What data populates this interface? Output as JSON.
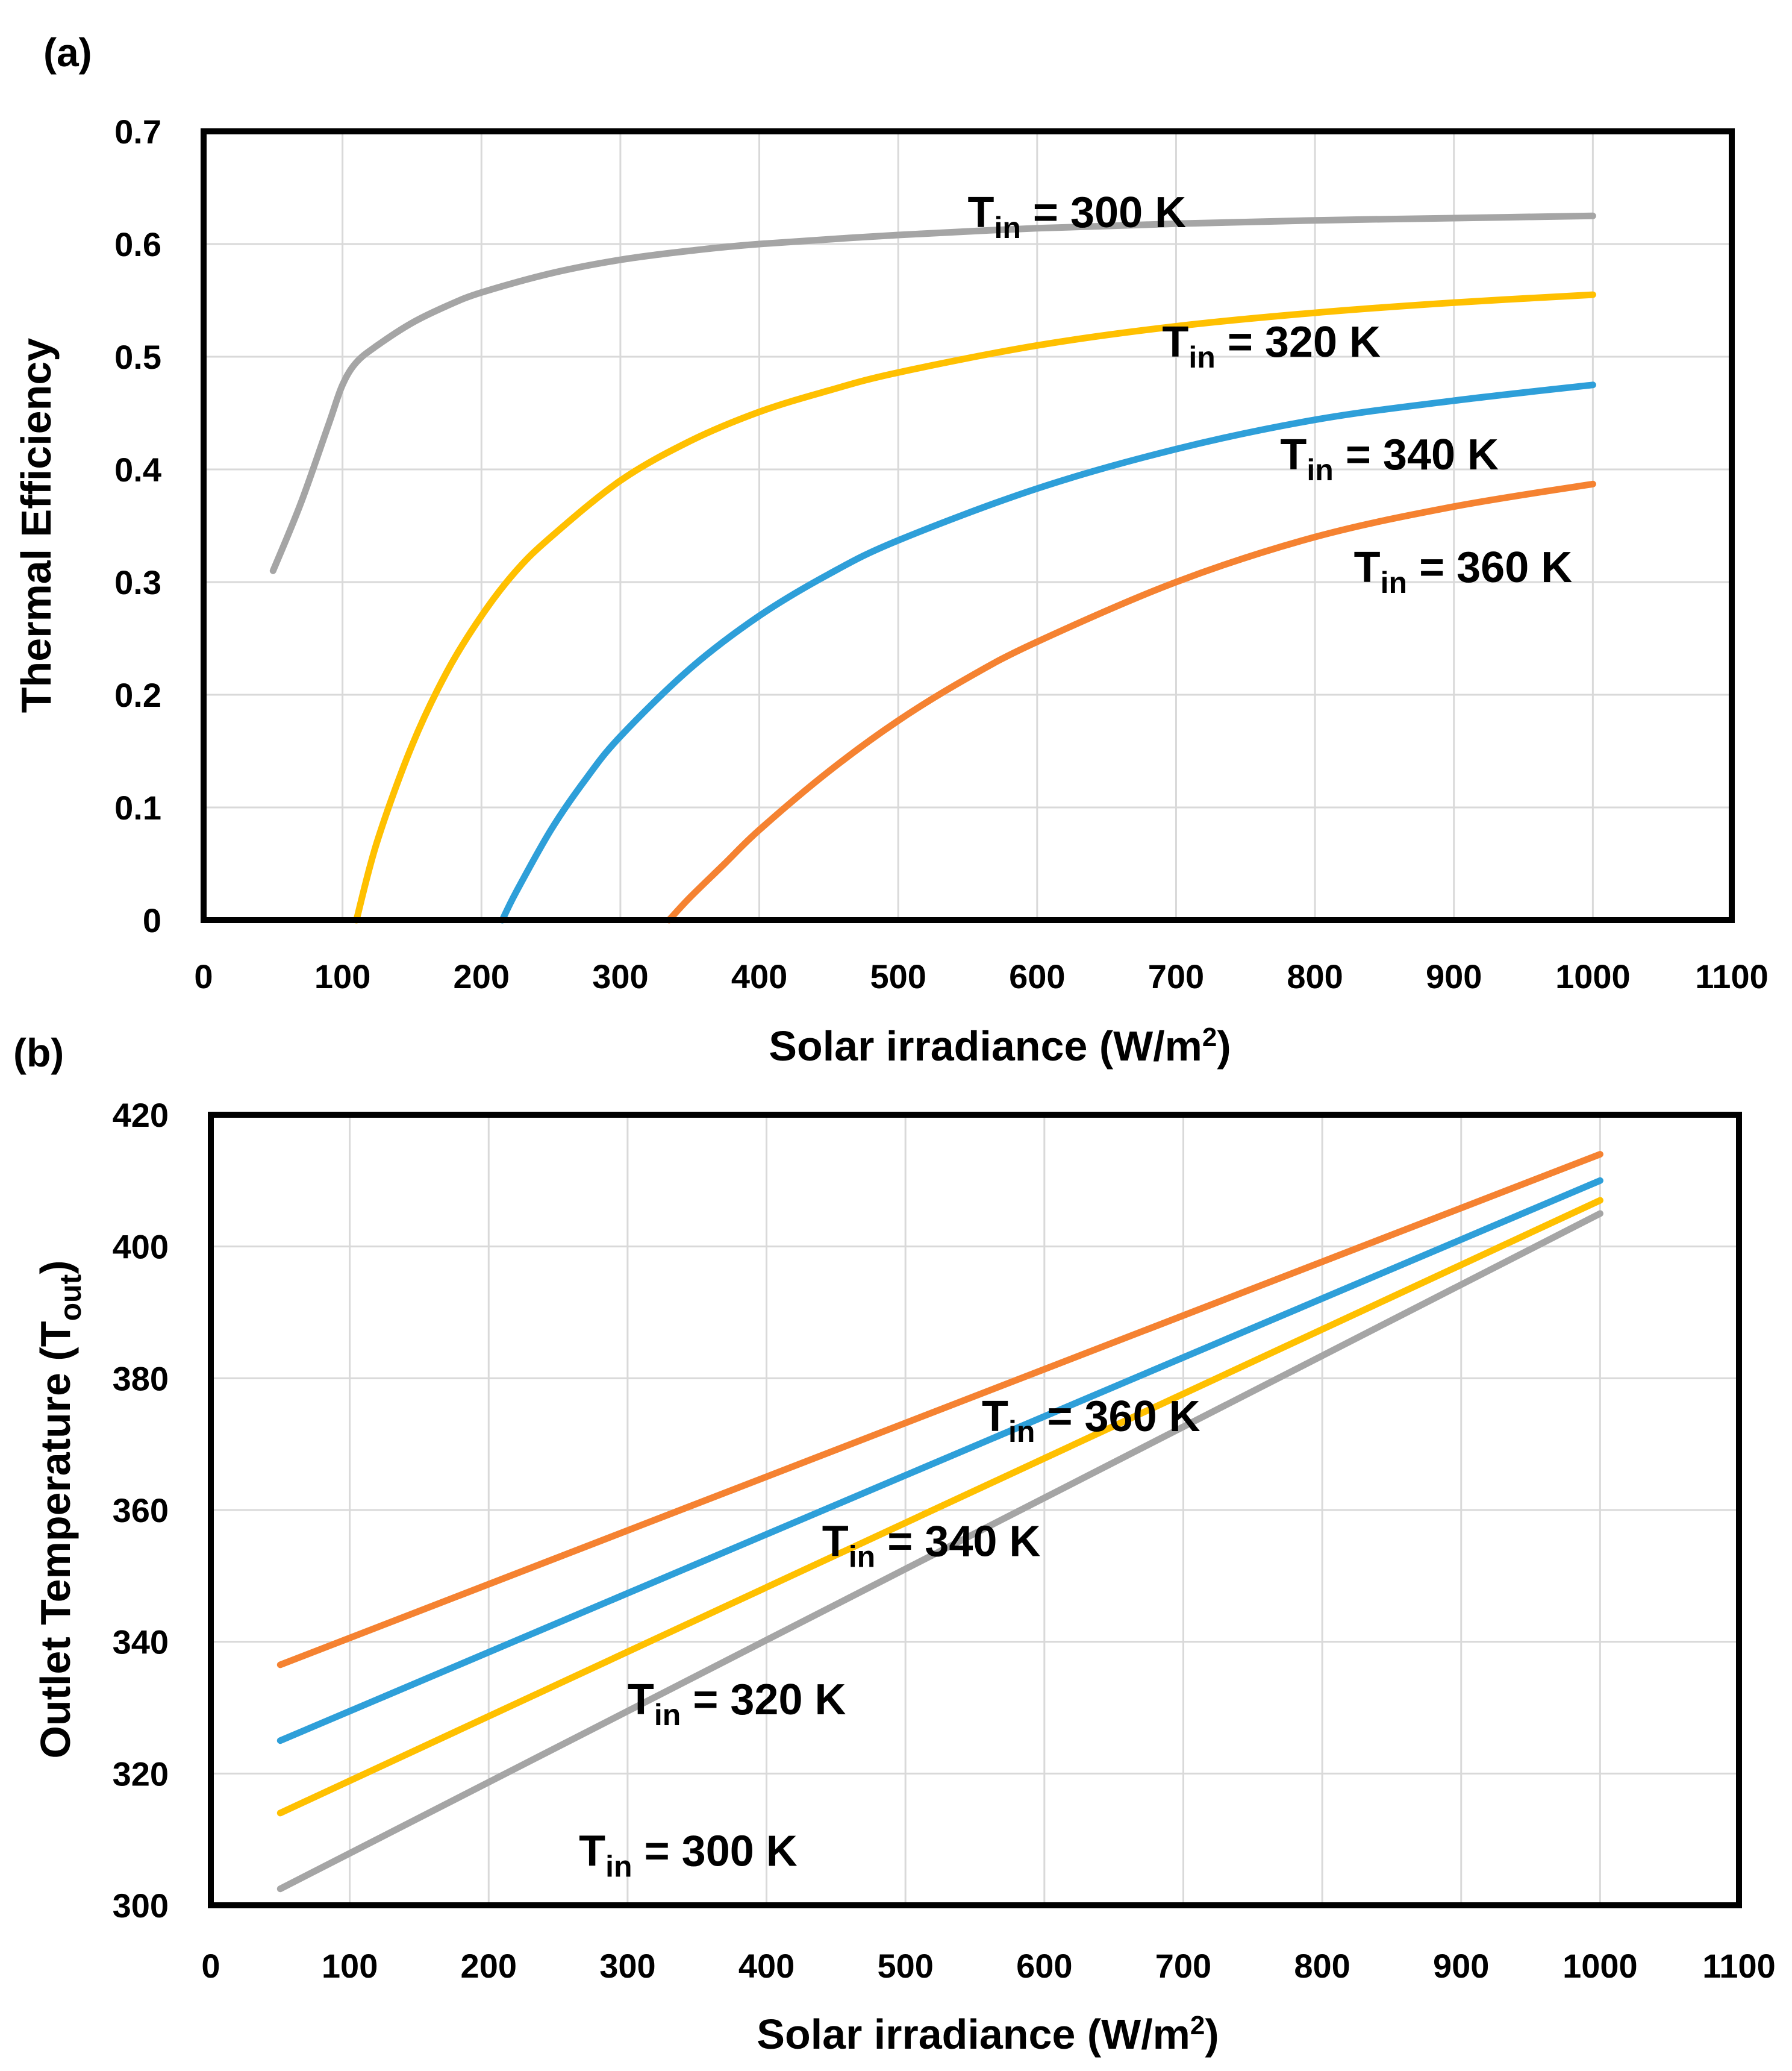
{
  "chart_data": [
    {
      "panel_label": "(a)",
      "type": "line",
      "xlabel": "Solar irradiance (W/m",
      "xlabel_sup": "2",
      "xlabel_end": ")",
      "ylabel": "Thermal Efficiency",
      "xlim": [
        0,
        1100
      ],
      "ylim": [
        0,
        0.7
      ],
      "xticks": [
        "0",
        "100",
        "200",
        "300",
        "400",
        "500",
        "600",
        "700",
        "800",
        "900",
        "1000",
        "1100"
      ],
      "yticks": [
        "0",
        "0.1",
        "0.2",
        "0.3",
        "0.4",
        "0.5",
        "0.6",
        "0.7"
      ],
      "grid": true,
      "series": [
        {
          "name": "Tin = 300 K",
          "label": {
            "base": "T",
            "sub": "in",
            "rest": " = 300 K"
          },
          "color": "#a5a5a5",
          "x": [
            50,
            70,
            90,
            100,
            110,
            125,
            150,
            175,
            200,
            250,
            300,
            350,
            400,
            500,
            600,
            700,
            800,
            900,
            1000
          ],
          "y": [
            0.31,
            0.37,
            0.44,
            0.475,
            0.495,
            0.51,
            0.53,
            0.545,
            0.557,
            0.574,
            0.586,
            0.594,
            0.6,
            0.608,
            0.614,
            0.618,
            0.621,
            0.623,
            0.625
          ],
          "label_at": [
            550,
            0.615
          ]
        },
        {
          "name": "Tin = 320 K",
          "label": {
            "base": "T",
            "sub": "in",
            "rest": " = 320 K"
          },
          "color": "#ffc000",
          "x": [
            110,
            125,
            150,
            175,
            200,
            225,
            250,
            300,
            350,
            400,
            450,
            500,
            600,
            700,
            800,
            900,
            1000
          ],
          "y": [
            0,
            0.07,
            0.155,
            0.22,
            0.27,
            0.31,
            0.34,
            0.39,
            0.425,
            0.451,
            0.47,
            0.486,
            0.51,
            0.527,
            0.539,
            0.548,
            0.555
          ],
          "label_at": [
            690,
            0.5
          ]
        },
        {
          "name": "Tin = 340 K",
          "label": {
            "base": "T",
            "sub": "in",
            "rest": " = 340 K"
          },
          "color": "#2e9fd9",
          "x": [
            215,
            225,
            250,
            275,
            300,
            350,
            400,
            450,
            500,
            600,
            700,
            800,
            900,
            1000
          ],
          "y": [
            0,
            0.025,
            0.08,
            0.125,
            0.163,
            0.223,
            0.27,
            0.307,
            0.337,
            0.383,
            0.418,
            0.444,
            0.461,
            0.475
          ],
          "label_at": [
            775,
            0.4
          ]
        },
        {
          "name": "Tin = 360 K",
          "label": {
            "base": "T",
            "sub": "in",
            "rest": " = 360 K"
          },
          "color": "#f58231",
          "x": [
            335,
            350,
            375,
            400,
            450,
            500,
            550,
            600,
            700,
            800,
            900,
            1000
          ],
          "y": [
            0,
            0.02,
            0.05,
            0.08,
            0.132,
            0.177,
            0.215,
            0.247,
            0.3,
            0.34,
            0.367,
            0.387
          ],
          "label_at": [
            828,
            0.3
          ]
        }
      ]
    },
    {
      "panel_label": "(b)",
      "type": "line",
      "xlabel": "Solar irradiance (W/m",
      "xlabel_sup": "2",
      "xlabel_end": ")",
      "ylabel": "Outlet Temperature  (T",
      "ylabel_sub": "out",
      "ylabel_end": ")",
      "xlim": [
        0,
        1100
      ],
      "ylim": [
        300,
        420
      ],
      "xticks": [
        "0",
        "100",
        "200",
        "300",
        "400",
        "500",
        "600",
        "700",
        "800",
        "900",
        "1000",
        "1100"
      ],
      "yticks": [
        "300",
        "320",
        "340",
        "360",
        "380",
        "400",
        "420"
      ],
      "grid": true,
      "series": [
        {
          "name": "Tin = 300 K",
          "label": {
            "base": "T",
            "sub": "in",
            "rest": " = 300 K"
          },
          "color": "#a5a5a5",
          "x": [
            50,
            1000
          ],
          "y": [
            302.5,
            405
          ],
          "label_at": [
            265,
            306
          ]
        },
        {
          "name": "Tin = 320 K",
          "label": {
            "base": "T",
            "sub": "in",
            "rest": " = 320 K"
          },
          "color": "#ffc000",
          "x": [
            50,
            1000
          ],
          "y": [
            314,
            407
          ],
          "label_at": [
            300,
            329
          ]
        },
        {
          "name": "Tin = 340 K",
          "label": {
            "base": "T",
            "sub": "in",
            "rest": " = 340 K"
          },
          "color": "#2e9fd9",
          "x": [
            50,
            1000
          ],
          "y": [
            325,
            410
          ],
          "label_at": [
            440,
            353
          ]
        },
        {
          "name": "Tin = 360 K",
          "label": {
            "base": "T",
            "sub": "in",
            "rest": " = 360 K"
          },
          "color": "#f58231",
          "x": [
            50,
            1000
          ],
          "y": [
            336.5,
            414
          ],
          "label_at": [
            555,
            372
          ]
        }
      ]
    }
  ]
}
